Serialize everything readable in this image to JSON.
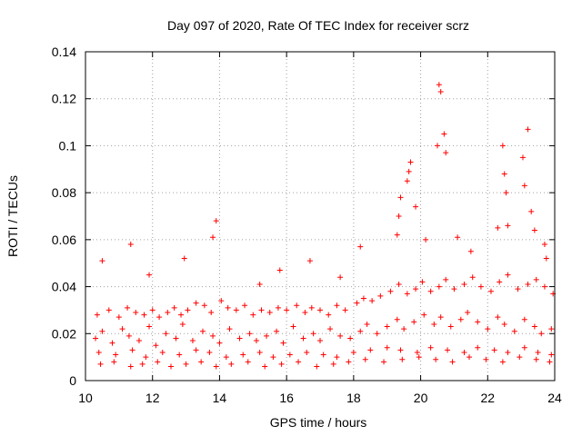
{
  "chart_data": {
    "type": "scatter",
    "title": "Day 097 of 2020, Rate Of TEC Index for receiver scrz",
    "xlabel": "GPS time / hours",
    "ylabel": "ROTI / TECUs",
    "xlim": [
      10,
      24
    ],
    "ylim": [
      0,
      0.14
    ],
    "xticks": [
      10,
      12,
      14,
      16,
      18,
      20,
      22,
      24
    ],
    "xtick_labels": [
      "10",
      "12",
      "14",
      "16",
      "18",
      "20",
      "22",
      "24"
    ],
    "yticks": [
      0,
      0.02,
      0.04,
      0.06,
      0.08,
      0.1,
      0.12,
      0.14
    ],
    "ytick_labels": [
      "0",
      "0.02",
      "0.04",
      "0.06",
      "0.08",
      "0.1",
      "0.12",
      "0.14"
    ],
    "grid": true,
    "marker": "+",
    "color": "#ff0000",
    "series": [
      {
        "name": "ROTI",
        "x": [
          10.3,
          10.5,
          10.8,
          11.1,
          11.3,
          11.6,
          11.9,
          12.1,
          12.4,
          12.7,
          12.9,
          13.2,
          13.5,
          13.8,
          14.0,
          14.3,
          14.6,
          14.9,
          15.1,
          15.4,
          15.7,
          15.9,
          16.2,
          16.5,
          16.8,
          17.0,
          17.3,
          17.6,
          17.9,
          18.2,
          18.4,
          18.7,
          19.0,
          19.3,
          19.5,
          19.8,
          20.1,
          20.4,
          20.6,
          20.9,
          21.2,
          21.4,
          21.7,
          22.0,
          22.3,
          22.5,
          22.8,
          23.1,
          23.4,
          23.6,
          23.9,
          10.4,
          10.9,
          11.4,
          11.8,
          12.3,
          12.8,
          13.3,
          13.7,
          14.2,
          14.7,
          15.2,
          15.6,
          16.1,
          16.6,
          17.1,
          17.5,
          18.0,
          18.5,
          19.0,
          19.4,
          19.9,
          20.3,
          20.8,
          21.3,
          21.7,
          22.2,
          22.6,
          23.1,
          23.5,
          23.9,
          10.35,
          10.7,
          11.0,
          11.25,
          11.5,
          11.75,
          12.0,
          12.2,
          12.45,
          12.65,
          12.85,
          13.05,
          13.3,
          13.55,
          13.75,
          14.05,
          14.25,
          14.5,
          14.75,
          15.0,
          15.25,
          15.5,
          15.75,
          16.0,
          16.3,
          16.55,
          16.75,
          17.0,
          17.25,
          17.5,
          17.75,
          18.1,
          18.3,
          18.55,
          18.8,
          19.1,
          19.35,
          19.6,
          19.85,
          20.05,
          20.3,
          20.55,
          20.75,
          21.0,
          21.3,
          21.55,
          21.8,
          22.1,
          22.35,
          22.6,
          22.9,
          23.2,
          23.45,
          23.7,
          23.95,
          10.45,
          10.85,
          11.35,
          11.7,
          12.15,
          12.55,
          13.0,
          13.45,
          13.9,
          14.35,
          14.85,
          15.35,
          15.85,
          16.35,
          16.9,
          17.4,
          17.85,
          18.35,
          18.9,
          19.45,
          19.95,
          20.45,
          20.95,
          21.45,
          21.95,
          22.45,
          22.95,
          23.45,
          23.85,
          10.5,
          11.35,
          11.9,
          12.95,
          13.8,
          13.9,
          15.2,
          15.8,
          16.7,
          17.6,
          18.2,
          19.3,
          19.35,
          19.4,
          19.6,
          19.65,
          19.7,
          19.85,
          20.15,
          20.5,
          20.55,
          20.6,
          20.7,
          20.75,
          21.1,
          21.5,
          22.3,
          22.45,
          22.5,
          22.55,
          22.6,
          23.05,
          23.1,
          23.2,
          23.3,
          23.4,
          23.7,
          23.75
        ],
        "y": [
          0.018,
          0.021,
          0.016,
          0.022,
          0.019,
          0.017,
          0.023,
          0.015,
          0.02,
          0.018,
          0.024,
          0.017,
          0.021,
          0.019,
          0.016,
          0.022,
          0.018,
          0.02,
          0.017,
          0.019,
          0.021,
          0.016,
          0.023,
          0.018,
          0.02,
          0.017,
          0.022,
          0.019,
          0.018,
          0.021,
          0.024,
          0.02,
          0.023,
          0.026,
          0.022,
          0.025,
          0.028,
          0.024,
          0.027,
          0.023,
          0.026,
          0.029,
          0.025,
          0.022,
          0.027,
          0.024,
          0.021,
          0.026,
          0.023,
          0.02,
          0.022,
          0.012,
          0.011,
          0.013,
          0.01,
          0.012,
          0.011,
          0.013,
          0.012,
          0.01,
          0.011,
          0.012,
          0.01,
          0.011,
          0.012,
          0.011,
          0.01,
          0.012,
          0.013,
          0.014,
          0.013,
          0.012,
          0.014,
          0.013,
          0.012,
          0.014,
          0.013,
          0.012,
          0.014,
          0.012,
          0.011,
          0.028,
          0.03,
          0.027,
          0.031,
          0.029,
          0.028,
          0.03,
          0.027,
          0.029,
          0.031,
          0.028,
          0.03,
          0.033,
          0.032,
          0.029,
          0.034,
          0.031,
          0.03,
          0.032,
          0.028,
          0.03,
          0.029,
          0.031,
          0.03,
          0.032,
          0.029,
          0.031,
          0.03,
          0.028,
          0.032,
          0.03,
          0.033,
          0.035,
          0.034,
          0.036,
          0.038,
          0.041,
          0.037,
          0.039,
          0.042,
          0.038,
          0.04,
          0.043,
          0.039,
          0.041,
          0.044,
          0.04,
          0.038,
          0.042,
          0.045,
          0.039,
          0.041,
          0.043,
          0.04,
          0.037,
          0.007,
          0.008,
          0.006,
          0.007,
          0.008,
          0.006,
          0.007,
          0.008,
          0.006,
          0.007,
          0.008,
          0.006,
          0.007,
          0.008,
          0.006,
          0.007,
          0.008,
          0.009,
          0.008,
          0.009,
          0.01,
          0.009,
          0.008,
          0.01,
          0.009,
          0.008,
          0.01,
          0.009,
          0.008,
          0.051,
          0.058,
          0.045,
          0.052,
          0.061,
          0.068,
          0.041,
          0.047,
          0.051,
          0.044,
          0.057,
          0.062,
          0.07,
          0.078,
          0.085,
          0.089,
          0.093,
          0.074,
          0.06,
          0.1,
          0.126,
          0.123,
          0.105,
          0.097,
          0.061,
          0.055,
          0.065,
          0.1,
          0.088,
          0.08,
          0.066,
          0.095,
          0.083,
          0.107,
          0.072,
          0.064,
          0.058,
          0.052
        ]
      }
    ]
  }
}
